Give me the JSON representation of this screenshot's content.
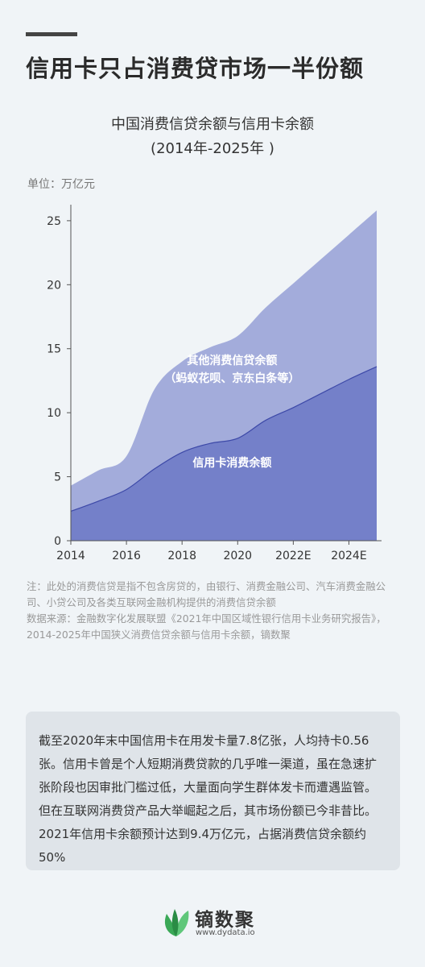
{
  "headline": "信用卡只占消费贷市场一半份额",
  "chart_title_line1": "中国消费信贷余额与信用卡余额",
  "chart_title_line2": "(2014年-2025年 )",
  "unit_label": "单位：万亿元",
  "chart_data": {
    "type": "area",
    "stacked": true,
    "x": [
      2014,
      2015,
      2016,
      2017,
      2018,
      2019,
      2020,
      2021,
      2022,
      2023,
      2024,
      2025
    ],
    "x_tick_values": [
      2014,
      2016,
      2018,
      2020,
      2022,
      2024
    ],
    "x_tick_labels": [
      "2014",
      "2016",
      "2018",
      "2020",
      "2022E",
      "2024E"
    ],
    "y_ticks": [
      0,
      5,
      10,
      15,
      20,
      25
    ],
    "ylim": [
      0,
      26
    ],
    "xlim": [
      2014,
      2025
    ],
    "series": [
      {
        "values": [
          2.3,
          3.1,
          4.0,
          5.6,
          6.9,
          7.6,
          8.0,
          9.4,
          10.4,
          11.5,
          12.6,
          13.6
        ]
      },
      {
        "values": [
          2.0,
          2.4,
          2.6,
          6.2,
          7.1,
          7.5,
          8.0,
          8.8,
          9.7,
          10.5,
          11.3,
          12.2
        ]
      }
    ],
    "series_labels": [
      {
        "lines": [
          "信用卡消费余额"
        ],
        "x": 2019.8,
        "y": 5.8
      },
      {
        "lines": [
          "其他消费信贷余额",
          "（蚂蚁花呗、京东白条等）"
        ],
        "x": 2019.8,
        "y": 13.8
      }
    ],
    "colors": [
      "#7480c9",
      "#a3acdb"
    ],
    "line_color": "#3d49a8",
    "grid": false
  },
  "notes": [
    "注：此处的消费信贷是指不包含房贷的，由银行、消费金融公司、汽车消费金融公司、小贷公司及各类互联网金融机构提供的消费信贷余额",
    "数据来源：金融数字化发展联盟《2021年中国区域性银行信用卡业务研究报告》，2014-2025年中国狭义消费信贷余额与信用卡余额，镝数聚"
  ],
  "summary": "截至2020年末中国信用卡在用发卡量7.8亿张，人均持卡0.56张。信用卡曾是个人短期消费贷款的几乎唯一渠道，虽在急速扩张阶段也因审批门槛过低，大量面向学生群体发卡而遭遇监管。但在互联网消费贷产品大举崛起之后，其市场份额已今非昔比。2021年信用卡余额预计达到9.4万亿元，占据消费信贷余额约50%",
  "footer": {
    "brand": "镝数聚",
    "url": "www.dydata.io",
    "logo_icon": "leaf-logo-icon"
  }
}
